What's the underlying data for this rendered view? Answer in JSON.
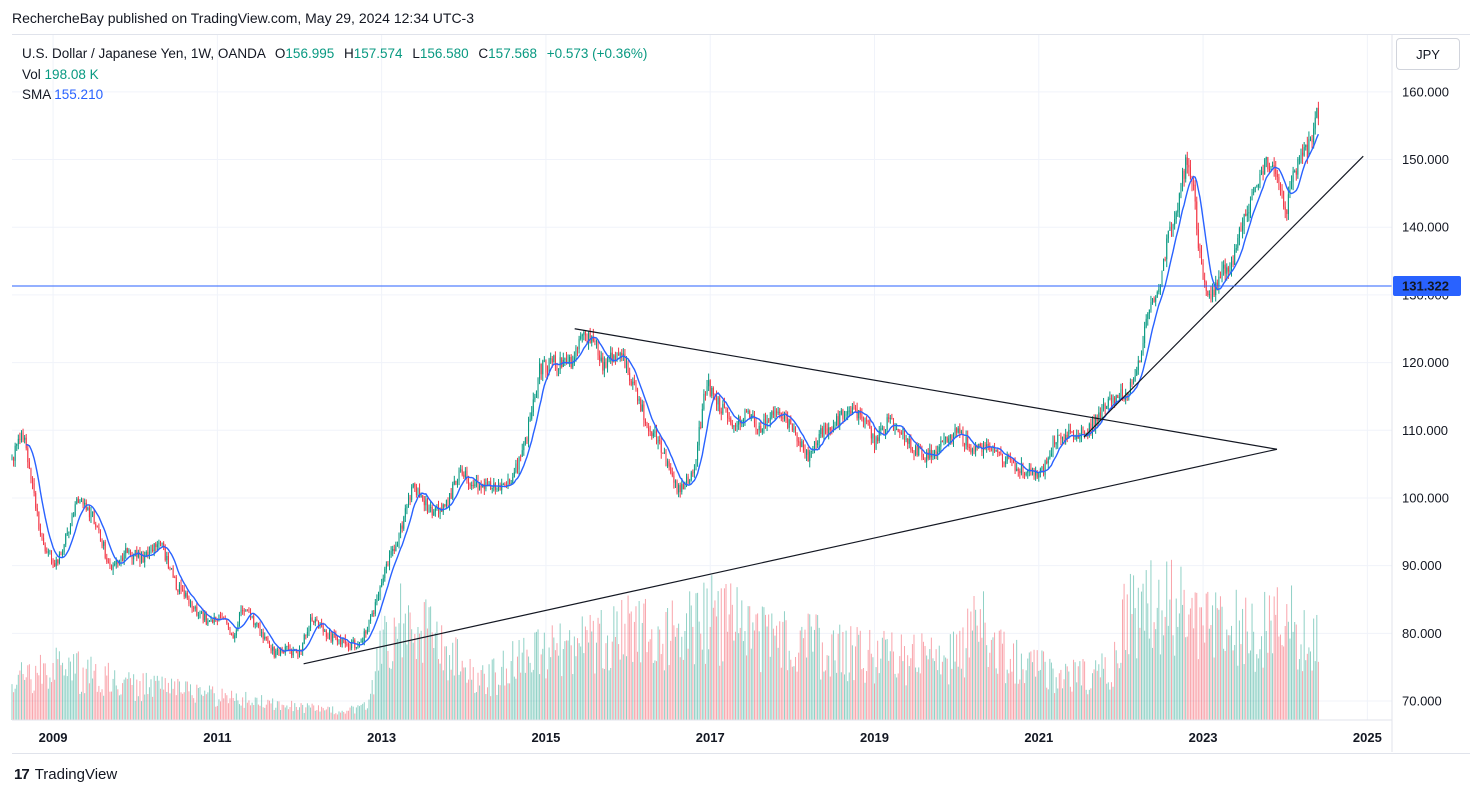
{
  "header": {
    "published": "RechercheBay published on TradingView.com, May 29, 2024 12:34 UTC-3"
  },
  "legend": {
    "symbol": "U.S. Dollar / Japanese Yen, 1W, OANDA",
    "o_label": "O",
    "o_value": "156.995",
    "h_label": "H",
    "h_value": "157.574",
    "l_label": "L",
    "l_value": "156.580",
    "c_label": "C",
    "c_value": "157.568",
    "change": "+0.573 (+0.36%)",
    "vol_label": "Vol",
    "vol_value": "198.08 K",
    "sma_label": "SMA",
    "sma_value": "155.210"
  },
  "currency_button": "JPY",
  "price_label": "131.322",
  "footer": {
    "brand": "TradingView"
  },
  "chart_data": {
    "type": "candlestick",
    "title": "U.S. Dollar / Japanese Yen, 1W, OANDA",
    "x_ticks": [
      "2009",
      "2011",
      "2013",
      "2015",
      "2017",
      "2019",
      "2021",
      "2023",
      "2025"
    ],
    "y_ticks": [
      "70.000",
      "80.000",
      "90.000",
      "100.000",
      "110.000",
      "120.000",
      "130.000",
      "140.000",
      "150.000",
      "160.000"
    ],
    "xlim": [
      2008.5,
      2025.3
    ],
    "ylim": [
      67.2,
      168.4
    ],
    "horizontal_line": {
      "value": 131.322,
      "color": "#2962ff"
    },
    "price_path": [
      [
        2008.5,
        106
      ],
      [
        2008.65,
        109.5
      ],
      [
        2008.85,
        94
      ],
      [
        2009.05,
        90
      ],
      [
        2009.15,
        94
      ],
      [
        2009.3,
        100
      ],
      [
        2009.5,
        97
      ],
      [
        2009.7,
        89.5
      ],
      [
        2009.9,
        92
      ],
      [
        2010.1,
        91
      ],
      [
        2010.3,
        93.5
      ],
      [
        2010.5,
        87
      ],
      [
        2010.7,
        84
      ],
      [
        2010.9,
        81.5
      ],
      [
        2011.1,
        82.5
      ],
      [
        2011.2,
        79
      ],
      [
        2011.3,
        84
      ],
      [
        2011.55,
        80
      ],
      [
        2011.7,
        76.8
      ],
      [
        2011.85,
        77.5
      ],
      [
        2012.0,
        77
      ],
      [
        2012.15,
        82.5
      ],
      [
        2012.3,
        80
      ],
      [
        2012.55,
        78.5
      ],
      [
        2012.75,
        78.5
      ],
      [
        2012.9,
        83
      ],
      [
        2013.05,
        90
      ],
      [
        2013.2,
        94
      ],
      [
        2013.38,
        101.5
      ],
      [
        2013.6,
        98
      ],
      [
        2013.8,
        99
      ],
      [
        2013.95,
        104
      ],
      [
        2014.1,
        102
      ],
      [
        2014.3,
        102
      ],
      [
        2014.55,
        102
      ],
      [
        2014.75,
        108
      ],
      [
        2014.92,
        119
      ],
      [
        2015.1,
        120
      ],
      [
        2015.3,
        120
      ],
      [
        2015.45,
        124
      ],
      [
        2015.6,
        123.5
      ],
      [
        2015.7,
        119.5
      ],
      [
        2015.9,
        122
      ],
      [
        2016.05,
        117
      ],
      [
        2016.2,
        112
      ],
      [
        2016.45,
        106
      ],
      [
        2016.6,
        101
      ],
      [
        2016.8,
        104
      ],
      [
        2016.95,
        117
      ],
      [
        2017.1,
        114
      ],
      [
        2017.3,
        111
      ],
      [
        2017.45,
        112.5
      ],
      [
        2017.6,
        110
      ],
      [
        2017.75,
        113
      ],
      [
        2017.9,
        112
      ],
      [
        2018.1,
        108
      ],
      [
        2018.2,
        106
      ],
      [
        2018.3,
        109
      ],
      [
        2018.5,
        111
      ],
      [
        2018.7,
        113
      ],
      [
        2018.85,
        112.5
      ],
      [
        2019.0,
        108
      ],
      [
        2019.15,
        111
      ],
      [
        2019.3,
        110.5
      ],
      [
        2019.45,
        107.5
      ],
      [
        2019.65,
        106
      ],
      [
        2019.85,
        108.5
      ],
      [
        2020.0,
        110
      ],
      [
        2020.2,
        107
      ],
      [
        2020.35,
        108
      ],
      [
        2020.5,
        106
      ],
      [
        2020.7,
        105
      ],
      [
        2020.9,
        103.5
      ],
      [
        2021.05,
        104
      ],
      [
        2021.2,
        108.5
      ],
      [
        2021.4,
        109.5
      ],
      [
        2021.6,
        110
      ],
      [
        2021.8,
        113.5
      ],
      [
        2021.95,
        115
      ],
      [
        2022.1,
        115.5
      ],
      [
        2022.25,
        122
      ],
      [
        2022.35,
        128
      ],
      [
        2022.45,
        130
      ],
      [
        2022.55,
        137
      ],
      [
        2022.7,
        144
      ],
      [
        2022.8,
        150
      ],
      [
        2022.88,
        147
      ],
      [
        2022.95,
        136
      ],
      [
        2023.02,
        131
      ],
      [
        2023.1,
        129.5
      ],
      [
        2023.2,
        133
      ],
      [
        2023.35,
        134
      ],
      [
        2023.45,
        140
      ],
      [
        2023.6,
        144
      ],
      [
        2023.75,
        149.5
      ],
      [
        2023.9,
        148
      ],
      [
        2024.0,
        142
      ],
      [
        2024.1,
        148
      ],
      [
        2024.25,
        151
      ],
      [
        2024.33,
        154
      ],
      [
        2024.41,
        157.6
      ]
    ],
    "sma_period_weeks": 10,
    "volume_ylim": [
      0,
      100
    ],
    "volume_profile": [
      [
        2008.5,
        20
      ],
      [
        2009.0,
        30
      ],
      [
        2009.5,
        24
      ],
      [
        2010.0,
        19
      ],
      [
        2010.5,
        16
      ],
      [
        2011.0,
        13
      ],
      [
        2011.5,
        10
      ],
      [
        2012.0,
        7
      ],
      [
        2012.5,
        5
      ],
      [
        2012.85,
        8
      ],
      [
        2012.95,
        38
      ],
      [
        2013.3,
        58
      ],
      [
        2013.8,
        36
      ],
      [
        2014.3,
        22
      ],
      [
        2014.8,
        36
      ],
      [
        2015.3,
        40
      ],
      [
        2016.0,
        48
      ],
      [
        2016.6,
        46
      ],
      [
        2017.0,
        56
      ],
      [
        2017.5,
        50
      ],
      [
        2018.0,
        42
      ],
      [
        2018.5,
        40
      ],
      [
        2019.0,
        36
      ],
      [
        2019.5,
        34
      ],
      [
        2020.0,
        34
      ],
      [
        2020.3,
        56
      ],
      [
        2020.6,
        33
      ],
      [
        2021.0,
        27
      ],
      [
        2021.5,
        25
      ],
      [
        2021.85,
        26
      ],
      [
        2022.05,
        54
      ],
      [
        2022.4,
        66
      ],
      [
        2022.8,
        58
      ],
      [
        2023.2,
        54
      ],
      [
        2023.6,
        48
      ],
      [
        2024.0,
        53
      ],
      [
        2024.4,
        46
      ]
    ],
    "trendlines": [
      {
        "from": [
          2012.05,
          75.5
        ],
        "to": [
          2023.9,
          107.2
        ]
      },
      {
        "from": [
          2015.35,
          125.0
        ],
        "to": [
          2023.9,
          107.2
        ]
      },
      {
        "from": [
          2021.55,
          109.0
        ],
        "to": [
          2024.95,
          150.5
        ]
      }
    ],
    "colors": {
      "up": "#089981",
      "down": "#f23645",
      "sma": "#2962ff",
      "trendline": "#131722"
    }
  }
}
